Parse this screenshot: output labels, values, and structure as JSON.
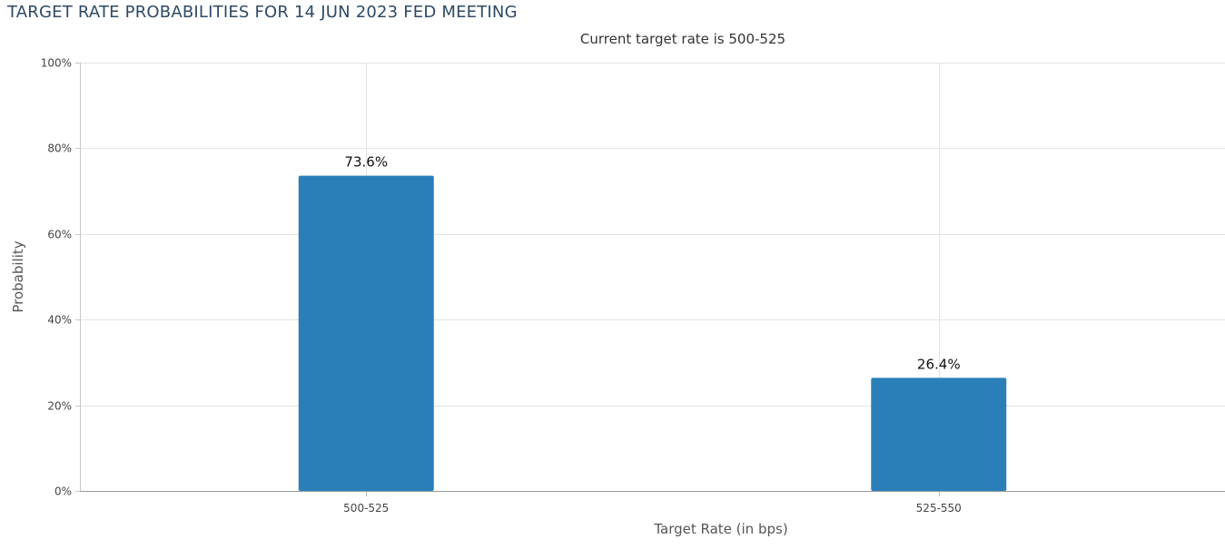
{
  "chart_data": {
    "type": "bar",
    "title": "TARGET RATE PROBABILITIES FOR 14 JUN 2023 FED MEETING",
    "subtitle": "Current target rate is 500-525",
    "xlabel": "Target Rate (in bps)",
    "ylabel": "Probability",
    "categories": [
      "500-525",
      "525-550"
    ],
    "values": [
      73.6,
      26.4
    ],
    "data_labels": [
      "73.6%",
      "26.4%"
    ],
    "ylim": [
      0,
      100
    ],
    "yticks": [
      0,
      20,
      40,
      60,
      80,
      100
    ],
    "ytick_labels": [
      "0%",
      "20%",
      "40%",
      "60%",
      "80%",
      "100%"
    ],
    "grid": true,
    "legend": "none",
    "bar_color": "#2a7fb8",
    "grid_color": "#e3e3e3"
  }
}
